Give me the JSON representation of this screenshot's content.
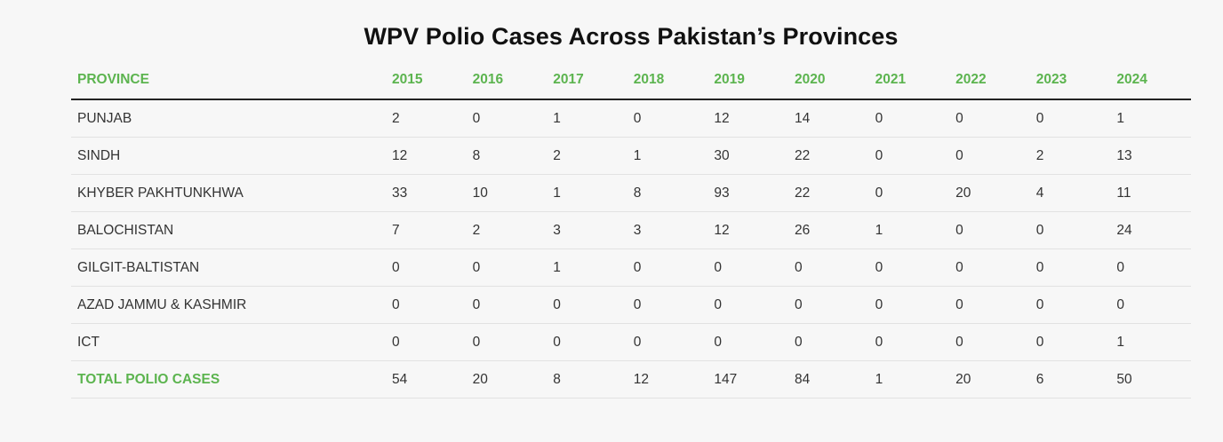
{
  "chart_data": {
    "type": "table",
    "title": "WPV Polio Cases Across Pakistan’s Provinces",
    "header_label": "PROVINCE",
    "years": [
      "2015",
      "2016",
      "2017",
      "2018",
      "2019",
      "2020",
      "2021",
      "2022",
      "2023",
      "2024"
    ],
    "rows": [
      {
        "province": "PUNJAB",
        "values": [
          2,
          0,
          1,
          0,
          12,
          14,
          0,
          0,
          0,
          1
        ]
      },
      {
        "province": "SINDH",
        "values": [
          12,
          8,
          2,
          1,
          30,
          22,
          0,
          0,
          2,
          13
        ]
      },
      {
        "province": "KHYBER PAKHTUNKHWA",
        "values": [
          33,
          10,
          1,
          8,
          93,
          22,
          0,
          20,
          4,
          11
        ]
      },
      {
        "province": "BALOCHISTAN",
        "values": [
          7,
          2,
          3,
          3,
          12,
          26,
          1,
          0,
          0,
          24
        ]
      },
      {
        "province": "GILGIT-BALTISTAN",
        "values": [
          0,
          0,
          1,
          0,
          0,
          0,
          0,
          0,
          0,
          0
        ]
      },
      {
        "province": "AZAD JAMMU & KASHMIR",
        "values": [
          0,
          0,
          0,
          0,
          0,
          0,
          0,
          0,
          0,
          0
        ]
      },
      {
        "province": "ICT",
        "values": [
          0,
          0,
          0,
          0,
          0,
          0,
          0,
          0,
          0,
          1
        ]
      }
    ],
    "total": {
      "label": "TOTAL POLIO CASES",
      "values": [
        54,
        20,
        8,
        12,
        147,
        84,
        1,
        20,
        6,
        50
      ]
    }
  },
  "colors": {
    "header_text": "#5cb44f",
    "total_label": "#5cb44f",
    "body_text": "#333333",
    "background": "#f7f7f7"
  }
}
